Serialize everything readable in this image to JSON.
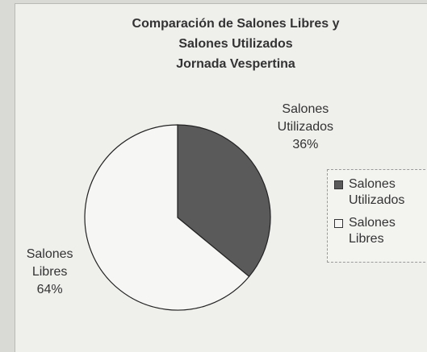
{
  "chart_data": {
    "type": "pie",
    "title": [
      "Comparación de Salones Libres y",
      "Salones Utilizados",
      "Jornada Vespertina"
    ],
    "categories": [
      "Salones Utilizados",
      "Salones Libres"
    ],
    "values": [
      36,
      64
    ],
    "value_labels": [
      "36%",
      "64%"
    ],
    "colors": [
      "#5a5a5a",
      "#f6f6f4"
    ],
    "legend": "right"
  }
}
